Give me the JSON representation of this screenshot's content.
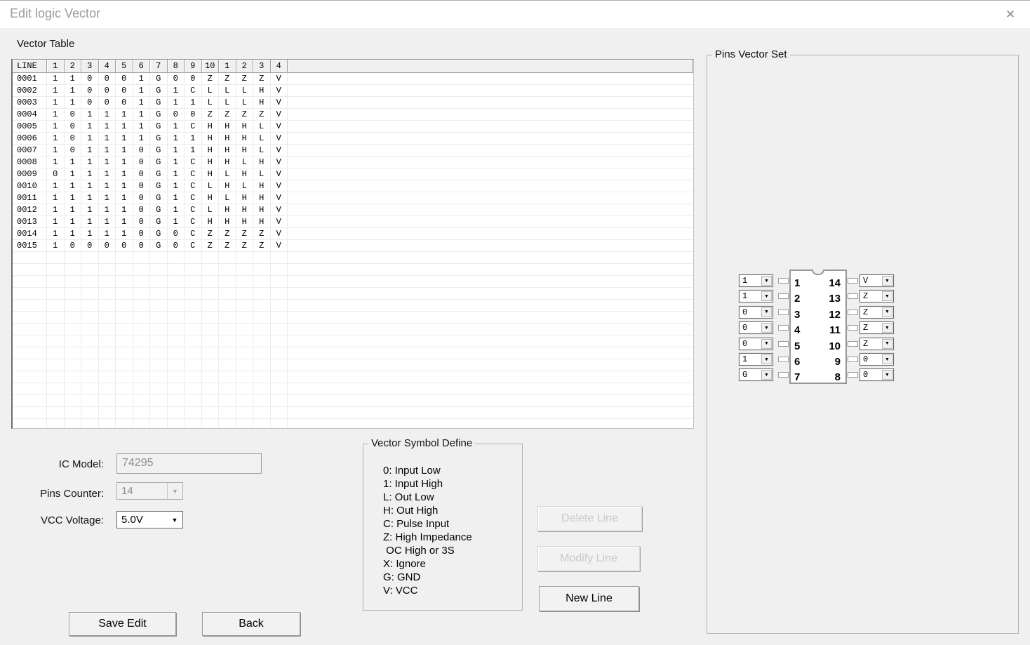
{
  "window": {
    "title": "Edit logic Vector",
    "close_icon": "✕"
  },
  "vector_table": {
    "label": "Vector Table",
    "headers": [
      "LINE",
      "1",
      "2",
      "3",
      "4",
      "5",
      "6",
      "7",
      "8",
      "9",
      "10",
      "1",
      "2",
      "3",
      "4"
    ],
    "rows": [
      {
        "line": "0001",
        "values": [
          "1",
          "1",
          "0",
          "0",
          "0",
          "1",
          "G",
          "0",
          "0",
          "Z",
          "Z",
          "Z",
          "Z",
          "V"
        ]
      },
      {
        "line": "0002",
        "values": [
          "1",
          "1",
          "0",
          "0",
          "0",
          "1",
          "G",
          "1",
          "C",
          "L",
          "L",
          "L",
          "H",
          "V"
        ]
      },
      {
        "line": "0003",
        "values": [
          "1",
          "1",
          "0",
          "0",
          "0",
          "1",
          "G",
          "1",
          "1",
          "L",
          "L",
          "L",
          "H",
          "V"
        ]
      },
      {
        "line": "0004",
        "values": [
          "1",
          "0",
          "1",
          "1",
          "1",
          "1",
          "G",
          "0",
          "0",
          "Z",
          "Z",
          "Z",
          "Z",
          "V"
        ]
      },
      {
        "line": "0005",
        "values": [
          "1",
          "0",
          "1",
          "1",
          "1",
          "1",
          "G",
          "1",
          "C",
          "H",
          "H",
          "H",
          "L",
          "V"
        ]
      },
      {
        "line": "0006",
        "values": [
          "1",
          "0",
          "1",
          "1",
          "1",
          "1",
          "G",
          "1",
          "1",
          "H",
          "H",
          "H",
          "L",
          "V"
        ]
      },
      {
        "line": "0007",
        "values": [
          "1",
          "0",
          "1",
          "1",
          "1",
          "0",
          "G",
          "1",
          "1",
          "H",
          "H",
          "H",
          "L",
          "V"
        ]
      },
      {
        "line": "0008",
        "values": [
          "1",
          "1",
          "1",
          "1",
          "1",
          "0",
          "G",
          "1",
          "C",
          "H",
          "H",
          "L",
          "H",
          "V"
        ]
      },
      {
        "line": "0009",
        "values": [
          "0",
          "1",
          "1",
          "1",
          "1",
          "0",
          "G",
          "1",
          "C",
          "H",
          "L",
          "H",
          "L",
          "V"
        ]
      },
      {
        "line": "0010",
        "values": [
          "1",
          "1",
          "1",
          "1",
          "1",
          "0",
          "G",
          "1",
          "C",
          "L",
          "H",
          "L",
          "H",
          "V"
        ]
      },
      {
        "line": "0011",
        "values": [
          "1",
          "1",
          "1",
          "1",
          "1",
          "0",
          "G",
          "1",
          "C",
          "H",
          "L",
          "H",
          "H",
          "V"
        ]
      },
      {
        "line": "0012",
        "values": [
          "1",
          "1",
          "1",
          "1",
          "1",
          "0",
          "G",
          "1",
          "C",
          "L",
          "H",
          "H",
          "H",
          "V"
        ]
      },
      {
        "line": "0013",
        "values": [
          "1",
          "1",
          "1",
          "1",
          "1",
          "0",
          "G",
          "1",
          "C",
          "H",
          "H",
          "H",
          "H",
          "V"
        ]
      },
      {
        "line": "0014",
        "values": [
          "1",
          "1",
          "1",
          "1",
          "1",
          "0",
          "G",
          "0",
          "C",
          "Z",
          "Z",
          "Z",
          "Z",
          "V"
        ]
      },
      {
        "line": "0015",
        "values": [
          "1",
          "0",
          "0",
          "0",
          "0",
          "0",
          "G",
          "0",
          "C",
          "Z",
          "Z",
          "Z",
          "Z",
          "V"
        ]
      }
    ],
    "empty_row_count": 15
  },
  "form": {
    "ic_model_label": "IC Model:",
    "ic_model_value": "74295",
    "pins_counter_label": "Pins Counter:",
    "pins_counter_value": "14",
    "vcc_voltage_label": "VCC Voltage:",
    "vcc_voltage_value": "5.0V"
  },
  "symbol_define": {
    "label": "Vector Symbol Define",
    "items": [
      "0: Input Low",
      "1: Input High",
      "L: Out Low",
      "H: Out High",
      "C: Pulse Input",
      "Z: High Impedance",
      " OC High or 3S",
      "X: Ignore",
      "G: GND",
      "V: VCC"
    ]
  },
  "line_buttons": {
    "delete_label": "Delete Line",
    "modify_label": "Modify Line",
    "new_label": "New Line"
  },
  "bottom_buttons": {
    "save_label": "Save Edit",
    "back_label": "Back"
  },
  "pins_vector_set": {
    "label": "Pins Vector Set",
    "dropdown_arrow": "▼",
    "left_pins": [
      {
        "pin": "1",
        "value": "1"
      },
      {
        "pin": "2",
        "value": "1"
      },
      {
        "pin": "3",
        "value": "0"
      },
      {
        "pin": "4",
        "value": "0"
      },
      {
        "pin": "5",
        "value": "0"
      },
      {
        "pin": "6",
        "value": "1"
      },
      {
        "pin": "7",
        "value": "G"
      }
    ],
    "right_pins": [
      {
        "pin": "14",
        "value": "V"
      },
      {
        "pin": "13",
        "value": "Z"
      },
      {
        "pin": "12",
        "value": "Z"
      },
      {
        "pin": "11",
        "value": "Z"
      },
      {
        "pin": "10",
        "value": "Z"
      },
      {
        "pin": "9",
        "value": "0"
      },
      {
        "pin": "8",
        "value": "0"
      }
    ]
  },
  "colors": {
    "dialog_bg": "#f0f0f0",
    "titlebar_bg": "#ffffff",
    "grid_line": "#ececec",
    "chip_border": "#989898",
    "disabled_text": "#c9c9c9"
  }
}
